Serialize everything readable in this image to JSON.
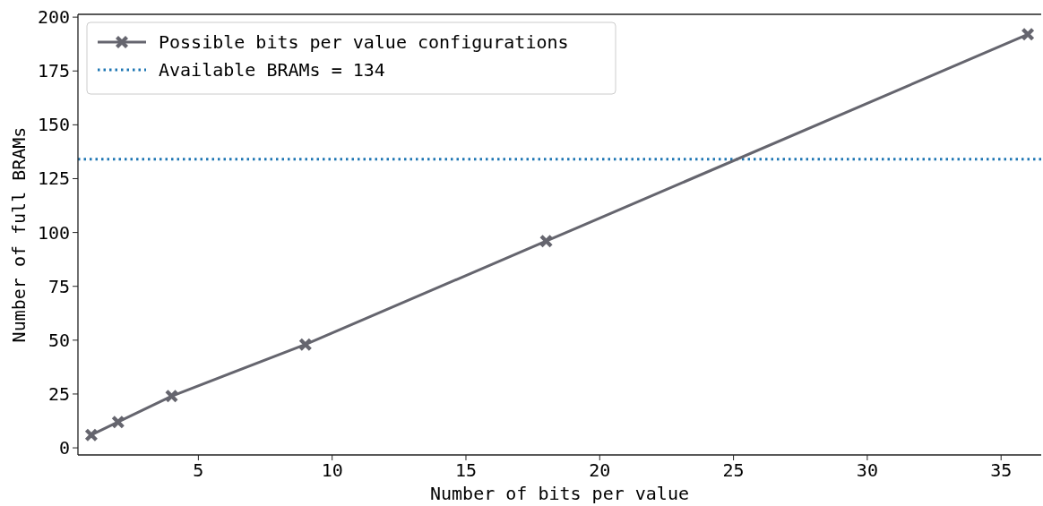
{
  "chart_data": {
    "type": "line",
    "xlabel": "Number of bits per value",
    "ylabel": "Number of full BRAMs",
    "x": [
      1,
      2,
      4,
      9,
      18,
      36
    ],
    "series": [
      {
        "name": "Possible bits per value configurations",
        "color": "#65656e",
        "values": [
          6,
          12,
          24,
          48,
          96,
          192
        ]
      }
    ],
    "ref_lines": [
      {
        "axis": "y",
        "value": 134,
        "label": "Available BRAMs = 134",
        "color": "#1f77b4",
        "line_style": "dotted"
      }
    ],
    "xlim": [
      0.5,
      36.5
    ],
    "ylim": [
      -3.3,
      201.3
    ],
    "xticks": [
      5,
      10,
      15,
      20,
      25,
      30,
      35
    ],
    "yticks": [
      0,
      25,
      50,
      75,
      100,
      125,
      150,
      175,
      200
    ],
    "marker": "cross",
    "line_style": "solid",
    "legend": "top left",
    "grid": false
  }
}
